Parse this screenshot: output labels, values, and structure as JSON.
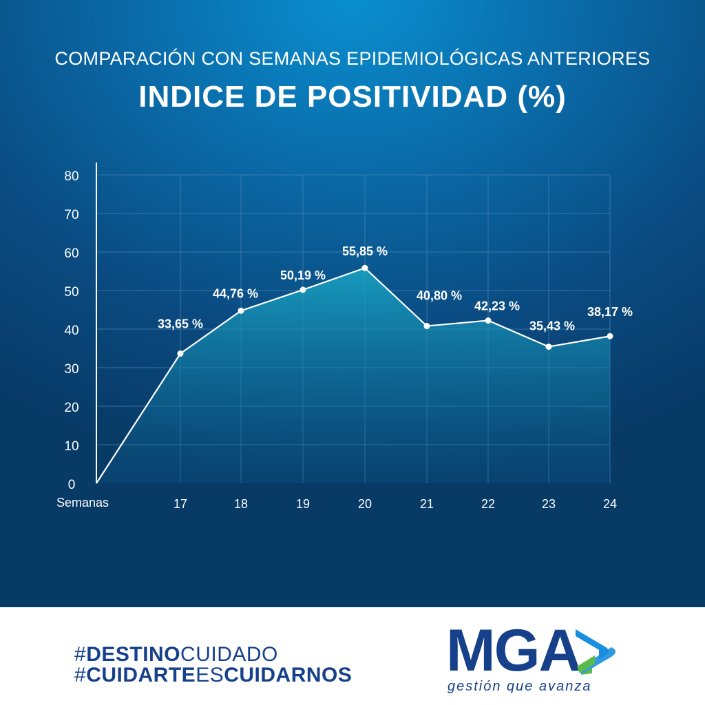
{
  "header": {
    "subtitle": "COMPARACIÓN CON SEMANAS EPIDEMIOLÓGICAS ANTERIORES",
    "title": "INDICE DE POSITIVIDAD (%)"
  },
  "chart_data": {
    "type": "area",
    "xlabel": "Semanas",
    "ylabel": "",
    "ylim": [
      0,
      80
    ],
    "yticks": [
      "0",
      "10",
      "20",
      "30",
      "40",
      "50",
      "60",
      "70",
      "80"
    ],
    "categories": [
      "17",
      "18",
      "19",
      "20",
      "21",
      "22",
      "23",
      "24"
    ],
    "values": [
      33.65,
      44.76,
      50.19,
      55.85,
      40.8,
      42.23,
      35.43,
      38.17
    ],
    "data_labels": [
      "33,65 %",
      "44,76 %",
      "50,19 %",
      "55,85 %",
      "40,80 %",
      "42,23 %",
      "35,43 %",
      "38,17 %"
    ],
    "grid": true,
    "colors": {
      "line": "#ffffff",
      "fill_top": "#1aa0c0",
      "grid": "#4a86b8"
    }
  },
  "footer": {
    "hashtag1": {
      "bold": "DESTINO",
      "light": "CUIDADO"
    },
    "hashtag2": {
      "bold1": "CUIDARTE",
      "light": "ES",
      "bold2": "CUIDARNOS"
    }
  },
  "logo": {
    "text": "MGA",
    "slogan": "gestión que avanza",
    "colors": {
      "blue": "#16418a",
      "light_blue": "#1a8fe0",
      "green": "#5bb84a"
    }
  }
}
